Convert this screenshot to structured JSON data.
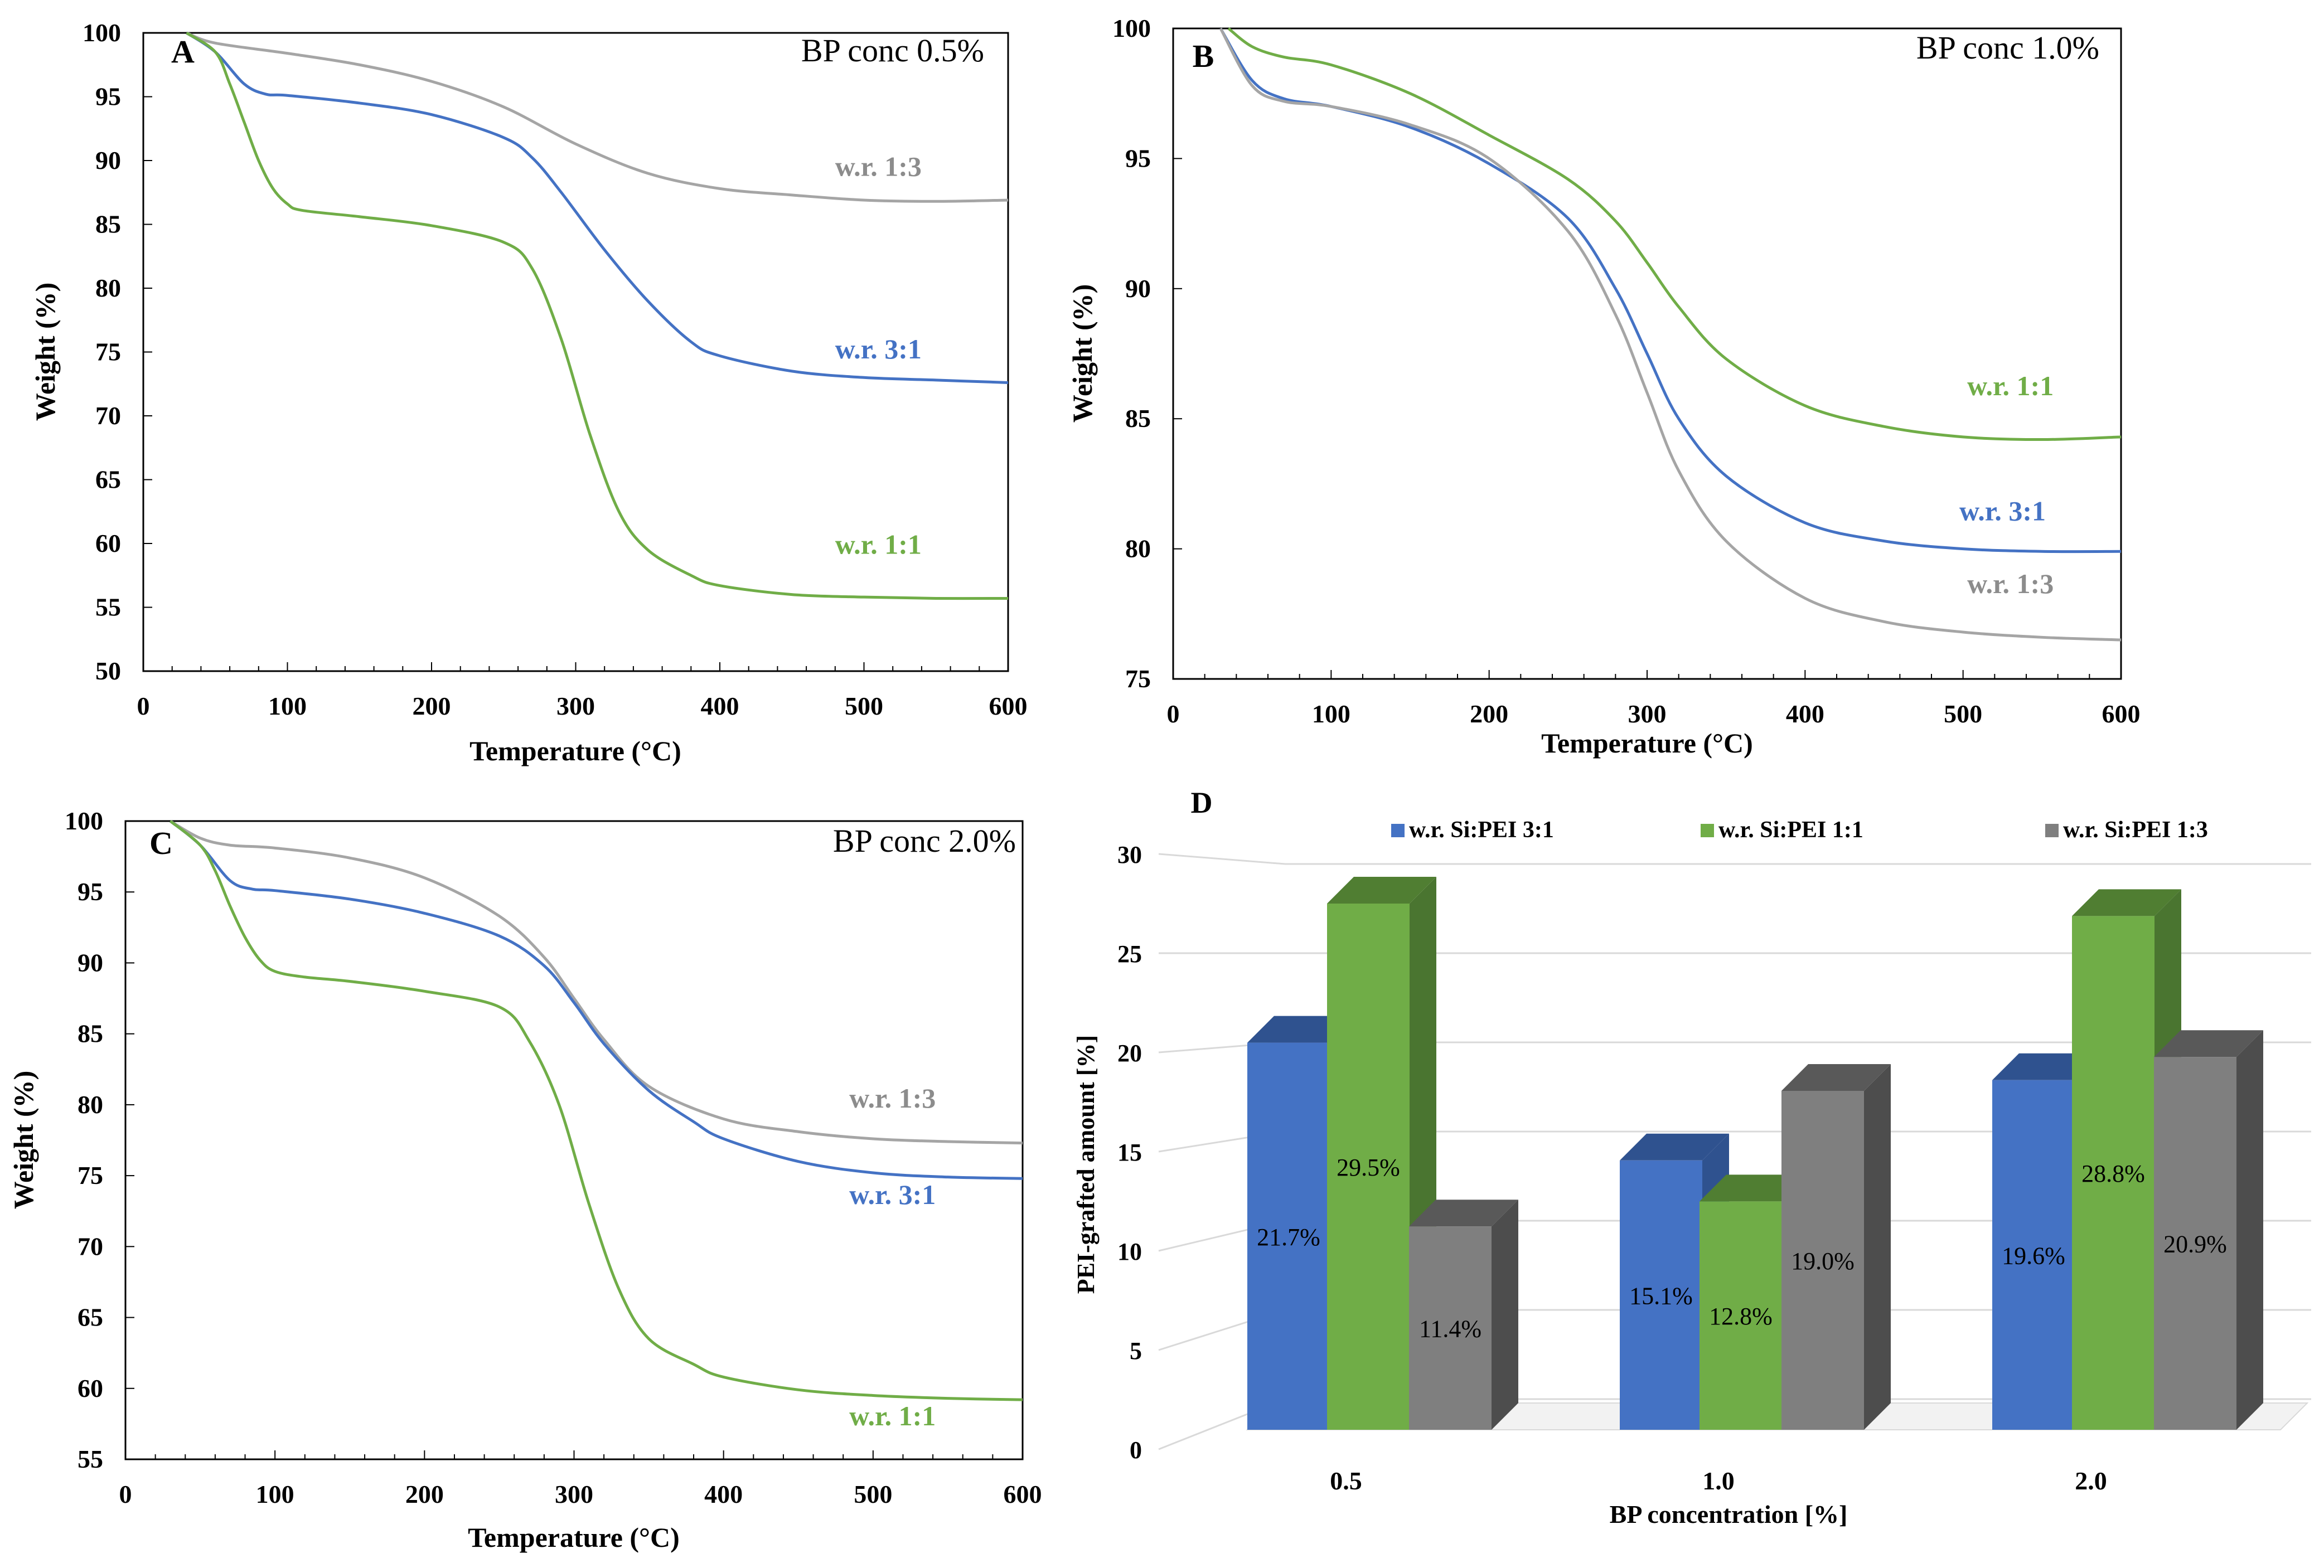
{
  "figure": {
    "colors": {
      "blue": "#4472C4",
      "green": "#70AD47",
      "gray": "#A5A5A5",
      "darkgreen": "#507E32",
      "darkblue": "#2F528F",
      "darkgray": "#595959",
      "axis": "#7F7F7F",
      "grid": "#D9D9D9"
    }
  },
  "chart_data": [
    {
      "id": "A",
      "type": "line",
      "panel_letter": "A",
      "title": "BP conc 0.5%",
      "xlabel": "Temperature (°C)",
      "ylabel": "Weight (%)",
      "xlim": [
        0,
        600
      ],
      "ylim": [
        50,
        100
      ],
      "xticks": [
        0,
        100,
        200,
        300,
        400,
        500,
        600
      ],
      "yticks": [
        50,
        55,
        60,
        65,
        70,
        75,
        80,
        85,
        90,
        95,
        100
      ],
      "series": [
        {
          "name": "w.r. 1:3",
          "color": "#A5A5A5",
          "label_color": "#8C8C8C",
          "label_at": [
            510,
            88.8
          ],
          "x": [
            30,
            50,
            100,
            150,
            200,
            250,
            300,
            350,
            400,
            450,
            500,
            550,
            600
          ],
          "y": [
            100,
            99.2,
            98.4,
            97.5,
            96.2,
            94.2,
            91.3,
            89.0,
            87.8,
            87.3,
            86.9,
            86.8,
            86.9
          ]
        },
        {
          "name": "w.r. 3:1",
          "color": "#4472C4",
          "label_color": "#4472C4",
          "label_at": [
            510,
            74.5
          ],
          "x": [
            30,
            50,
            70,
            85,
            100,
            150,
            200,
            250,
            270,
            290,
            320,
            350,
            380,
            400,
            450,
            500,
            550,
            600
          ],
          "y": [
            100,
            98.5,
            96.0,
            95.2,
            95.1,
            94.5,
            93.6,
            91.8,
            90.2,
            87.5,
            83.0,
            79.0,
            75.8,
            74.7,
            73.5,
            73.0,
            72.8,
            72.6
          ]
        },
        {
          "name": "w.r. 1:1",
          "color": "#70AD47",
          "label_color": "#70AD47",
          "label_at": [
            510,
            59.2
          ],
          "x": [
            30,
            50,
            60,
            70,
            80,
            90,
            100,
            110,
            150,
            200,
            250,
            270,
            290,
            310,
            330,
            350,
            380,
            400,
            450,
            500,
            550,
            600
          ],
          "y": [
            100,
            98.5,
            96.0,
            93.0,
            90.0,
            87.8,
            86.6,
            86.1,
            85.6,
            84.9,
            83.6,
            81.5,
            76.0,
            68.5,
            62.5,
            59.5,
            57.5,
            56.7,
            56.0,
            55.8,
            55.7,
            55.7
          ]
        }
      ]
    },
    {
      "id": "B",
      "type": "line",
      "panel_letter": "B",
      "title": "BP conc 1.0%",
      "xlabel": "Temperature (°C)",
      "ylabel": "Weight (%)",
      "xlim": [
        0,
        600
      ],
      "ylim": [
        75,
        100
      ],
      "xticks": [
        0,
        100,
        200,
        300,
        400,
        500,
        600
      ],
      "yticks": [
        75,
        80,
        85,
        90,
        95,
        100
      ],
      "series": [
        {
          "name": "w.r. 1:1",
          "color": "#70AD47",
          "label_color": "#70AD47",
          "label_at": [
            530,
            85.9
          ],
          "x": [
            35,
            50,
            70,
            100,
            150,
            200,
            250,
            280,
            300,
            320,
            350,
            400,
            450,
            500,
            550,
            600
          ],
          "y": [
            100,
            99.3,
            98.9,
            98.6,
            97.5,
            95.9,
            94.2,
            92.6,
            91.0,
            89.3,
            87.3,
            85.5,
            84.7,
            84.3,
            84.2,
            84.3
          ]
        },
        {
          "name": "w.r. 3:1",
          "color": "#4472C4",
          "label_color": "#4472C4",
          "label_at": [
            525,
            81.1
          ],
          "x": [
            30,
            50,
            70,
            100,
            150,
            200,
            250,
            280,
            300,
            320,
            350,
            400,
            450,
            500,
            550,
            600
          ],
          "y": [
            100,
            98.0,
            97.3,
            97.0,
            96.2,
            94.8,
            92.7,
            90.0,
            87.5,
            85.0,
            82.8,
            81.0,
            80.3,
            80.0,
            79.9,
            79.9
          ]
        },
        {
          "name": "w.r. 1:3",
          "color": "#A5A5A5",
          "label_color": "#8C8C8C",
          "label_at": [
            530,
            78.3
          ],
          "x": [
            30,
            50,
            70,
            100,
            150,
            200,
            250,
            280,
            300,
            320,
            350,
            400,
            450,
            500,
            550,
            600
          ],
          "y": [
            100,
            97.8,
            97.2,
            97.0,
            96.3,
            95.0,
            92.2,
            89.0,
            86.0,
            83.0,
            80.3,
            78.1,
            77.2,
            76.8,
            76.6,
            76.5
          ]
        }
      ]
    },
    {
      "id": "C",
      "type": "line",
      "panel_letter": "C",
      "title": "BP conc 2.0%",
      "xlabel": "Temperature (°C)",
      "ylabel": "Weight (%)",
      "xlim": [
        0,
        600
      ],
      "ylim": [
        55,
        100
      ],
      "xticks": [
        0,
        100,
        200,
        300,
        400,
        500,
        600
      ],
      "yticks": [
        55,
        60,
        65,
        70,
        75,
        80,
        85,
        90,
        95,
        100
      ],
      "series": [
        {
          "name": "w.r. 1:3",
          "color": "#A5A5A5",
          "label_color": "#8C8C8C",
          "label_at": [
            513,
            79.8
          ],
          "x": [
            30,
            50,
            70,
            100,
            150,
            200,
            250,
            280,
            300,
            320,
            350,
            400,
            450,
            500,
            550,
            600
          ],
          "y": [
            100,
            98.8,
            98.3,
            98.1,
            97.4,
            96.0,
            93.3,
            90.4,
            87.5,
            84.6,
            81.3,
            79.0,
            78.1,
            77.6,
            77.4,
            77.3
          ]
        },
        {
          "name": "w.r. 3:1",
          "color": "#4472C4",
          "label_color": "#4472C4",
          "label_at": [
            513,
            73.0
          ],
          "x": [
            30,
            50,
            70,
            85,
            100,
            150,
            200,
            250,
            280,
            300,
            320,
            350,
            380,
            400,
            450,
            500,
            550,
            600
          ],
          "y": [
            100,
            98.3,
            95.8,
            95.2,
            95.1,
            94.5,
            93.5,
            91.9,
            89.8,
            87.2,
            84.3,
            81.0,
            78.8,
            77.6,
            76.0,
            75.2,
            74.9,
            74.8
          ]
        },
        {
          "name": "w.r. 1:1",
          "color": "#70AD47",
          "label_color": "#70AD47",
          "label_at": [
            513,
            57.4
          ],
          "x": [
            30,
            50,
            60,
            70,
            80,
            90,
            100,
            120,
            150,
            200,
            250,
            270,
            290,
            310,
            330,
            350,
            380,
            400,
            450,
            500,
            550,
            600
          ],
          "y": [
            100,
            98.3,
            96.5,
            94.0,
            91.8,
            90.2,
            89.4,
            89.0,
            88.7,
            88.0,
            86.9,
            84.5,
            80.0,
            73.0,
            67.0,
            63.5,
            61.7,
            60.8,
            59.9,
            59.5,
            59.3,
            59.2
          ]
        }
      ]
    },
    {
      "id": "D",
      "type": "bar",
      "panel_letter": "D",
      "title": "",
      "xlabel": "BP concentration [%]",
      "ylabel": "PEI-grafted amount [%]",
      "ylim": [
        0,
        30
      ],
      "yticks": [
        0,
        5,
        10,
        15,
        20,
        25,
        30
      ],
      "categories": [
        "0.5",
        "1.0",
        "2.0"
      ],
      "series": [
        {
          "name": "w.r. Si:PEI 3:1",
          "color": "#4472C4",
          "top_color": "#2F528F",
          "side_color": "#2F528F",
          "values": [
            21.7,
            15.1,
            19.6
          ],
          "labels": [
            "21.7%",
            "15.1%",
            "19.6%"
          ]
        },
        {
          "name": "w.r. Si:PEI 1:1",
          "color": "#70AD47",
          "top_color": "#507E32",
          "side_color": "#4A7530",
          "values": [
            29.5,
            12.8,
            28.8
          ],
          "labels": [
            "29.5%",
            "12.8%",
            "28.8%"
          ]
        },
        {
          "name": "w.r. Si:PEI 1:3",
          "color": "#7F7F7F",
          "top_color": "#595959",
          "side_color": "#4D4D4D",
          "values": [
            11.4,
            19.0,
            20.9
          ],
          "labels": [
            "11.4%",
            "19.0%",
            "20.9%"
          ]
        }
      ]
    }
  ]
}
